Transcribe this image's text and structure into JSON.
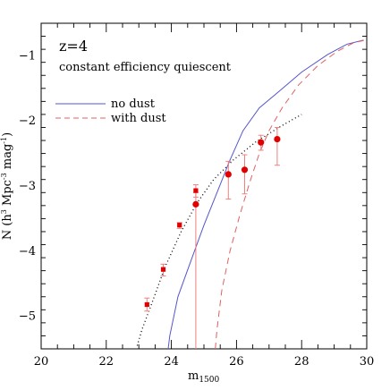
{
  "chart_data": {
    "type": "scatter",
    "annotations": {
      "redshift": "z=4",
      "model": "constant efficiency quiescent"
    },
    "xlabel": "m",
    "xlabel_sub": "1500",
    "ylabel_main": "N (h",
    "ylabel_sup3": "3",
    "ylabel_mid": " Mpc",
    "ylabel_supm3": "-3",
    "ylabel_mag": " mag",
    "ylabel_supm1": "-1",
    "ylabel_end": ")",
    "xlim": [
      20,
      30
    ],
    "ylim": [
      -5.5,
      -0.5
    ],
    "x_ticks": [
      20,
      22,
      24,
      26,
      28,
      30
    ],
    "y_ticks": [
      -5,
      -4,
      -3,
      -2,
      -1
    ],
    "legend_position": "upper-left",
    "series": [
      {
        "name": "no dust",
        "kind": "line",
        "color": "#5555cc",
        "dash": "solid",
        "x": [
          23.9,
          23.95,
          24.2,
          24.6,
          25.0,
          25.4,
          25.8,
          26.2,
          26.7,
          27.3,
          28.0,
          28.8,
          29.4,
          29.9
        ],
        "y": [
          -5.5,
          -5.3,
          -4.7,
          -4.15,
          -3.6,
          -3.1,
          -2.6,
          -2.15,
          -1.8,
          -1.55,
          -1.25,
          -0.98,
          -0.82,
          -0.76
        ]
      },
      {
        "name": "with dust",
        "kind": "line",
        "color": "#e06060",
        "dash": "dashed",
        "x": [
          25.35,
          25.4,
          25.55,
          25.8,
          26.1,
          26.4,
          26.7,
          27.0,
          27.4,
          27.9,
          28.5,
          29.1,
          29.6,
          29.95
        ],
        "y": [
          -5.5,
          -5.2,
          -4.6,
          -4.0,
          -3.45,
          -2.95,
          -2.5,
          -2.15,
          -1.8,
          -1.45,
          -1.15,
          -0.93,
          -0.8,
          -0.76
        ]
      },
      {
        "name": "",
        "kind": "line",
        "color": "#000000",
        "dash": "dotted",
        "x": [
          22.95,
          23.1,
          23.4,
          23.8,
          24.3,
          24.8,
          25.3,
          25.9,
          26.6,
          27.3,
          28.0
        ],
        "y": [
          -5.45,
          -5.2,
          -4.8,
          -4.25,
          -3.7,
          -3.25,
          -2.9,
          -2.6,
          -2.32,
          -2.1,
          -1.9
        ]
      },
      {
        "name": "",
        "kind": "points",
        "marker": "square",
        "color": "#e00000",
        "x": [
          23.25,
          23.75,
          24.25,
          24.75
        ],
        "y": [
          -4.82,
          -4.28,
          -3.6,
          -3.07
        ],
        "y_low": [
          -4.92,
          -4.38,
          -3.65,
          -3.17
        ],
        "y_high": [
          -4.72,
          -4.2,
          -3.56,
          -2.98
        ]
      },
      {
        "name": "",
        "kind": "points",
        "marker": "circle",
        "color": "#e00000",
        "x": [
          24.75,
          25.75,
          26.25,
          26.75,
          27.25
        ],
        "y": [
          -3.28,
          -2.82,
          -2.75,
          -2.33,
          -2.28
        ],
        "y_low": [
          -5.5,
          -3.2,
          -3.12,
          -2.45,
          -2.68
        ],
        "y_high": [
          -3.1,
          -2.62,
          -2.52,
          -2.22,
          -2.1
        ]
      }
    ]
  }
}
